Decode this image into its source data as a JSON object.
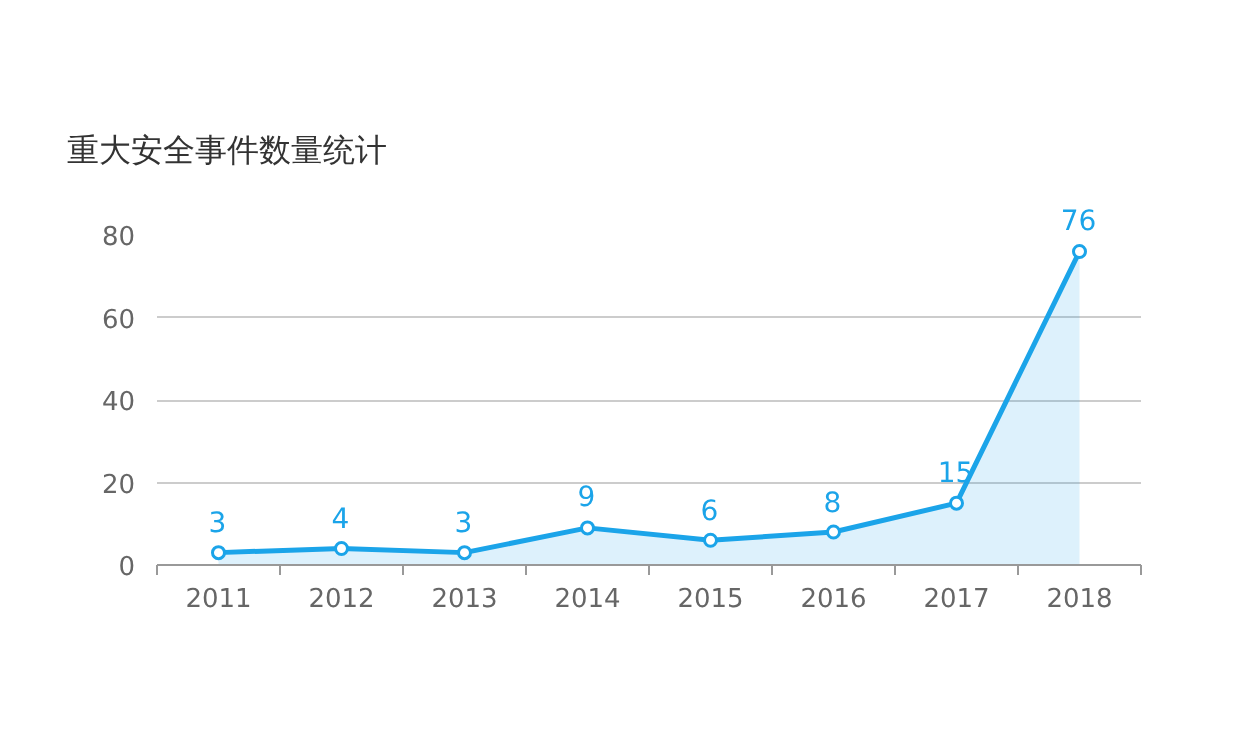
{
  "chart_data": {
    "type": "area",
    "title": "重大安全事件数量统计",
    "categories": [
      "2011",
      "2012",
      "2013",
      "2014",
      "2015",
      "2016",
      "2017",
      "2018"
    ],
    "series": [
      {
        "color": "#1ba4e9",
        "values": [
          3,
          4,
          3,
          9,
          6,
          8,
          15,
          76
        ]
      }
    ],
    "ylim": [
      0,
      80
    ],
    "yticks": [
      0,
      20,
      40,
      60,
      80
    ],
    "grid": "y",
    "marker": "circle",
    "data_labels": true
  }
}
